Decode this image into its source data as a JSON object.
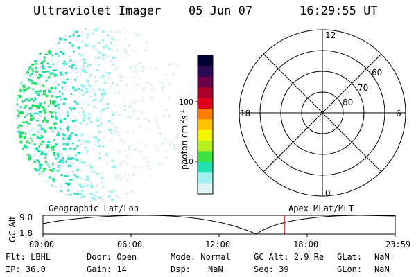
{
  "header": {
    "instrument": "Ultraviolet Imager",
    "date": "05 Jun 07",
    "time": "16:29:55 UT"
  },
  "colorbar": {
    "label_text": "photon cm",
    "sup1": "-2",
    "label_s": "s",
    "sup2": "-1",
    "tick_100": "100",
    "tick_10": "10",
    "colors": [
      "#000033",
      "#2a0a55",
      "#6a004a",
      "#a8002a",
      "#e0001a",
      "#ff7a00",
      "#ffc000",
      "#f5f500",
      "#b8f020",
      "#40e040",
      "#20e0b0",
      "#a0f0f0",
      "#e0f5f5"
    ]
  },
  "polar_plot": {
    "label_top": "12",
    "label_bottom": "0",
    "label_left": "18",
    "label_right": "6",
    "ring_60": "60",
    "ring_70": "70",
    "ring_80": "80"
  },
  "timeline": {
    "y_axis_label": "GC Alt",
    "y_max": "9.0",
    "y_min": "1.8",
    "left_label": "Geographic Lat/Lon",
    "right_label": "Apex MLat/MLT",
    "times": [
      "00:00",
      "06:00",
      "12:00",
      "18:00",
      "23:59"
    ],
    "marker_color": "#dd0000"
  },
  "status": {
    "flt_label": "Flt:",
    "flt_value": "LBHL",
    "ip_label": "IP:",
    "ip_value": "36.0",
    "door_label": "Door:",
    "door_value": "Open",
    "gain_label": "Gain:",
    "gain_value": "14",
    "mode_label": "Mode:",
    "mode_value": "Normal",
    "dsp_label": "Dsp:",
    "dsp_value": "NaN",
    "gcalt_label": "GC Alt:",
    "gcalt_value": "2.9 Re",
    "seq_label": "Seq:",
    "seq_value": "39",
    "glat_label": "GLat:",
    "glat_value": "NaN",
    "glon_label": "GLon:",
    "glon_value": "NaN"
  }
}
